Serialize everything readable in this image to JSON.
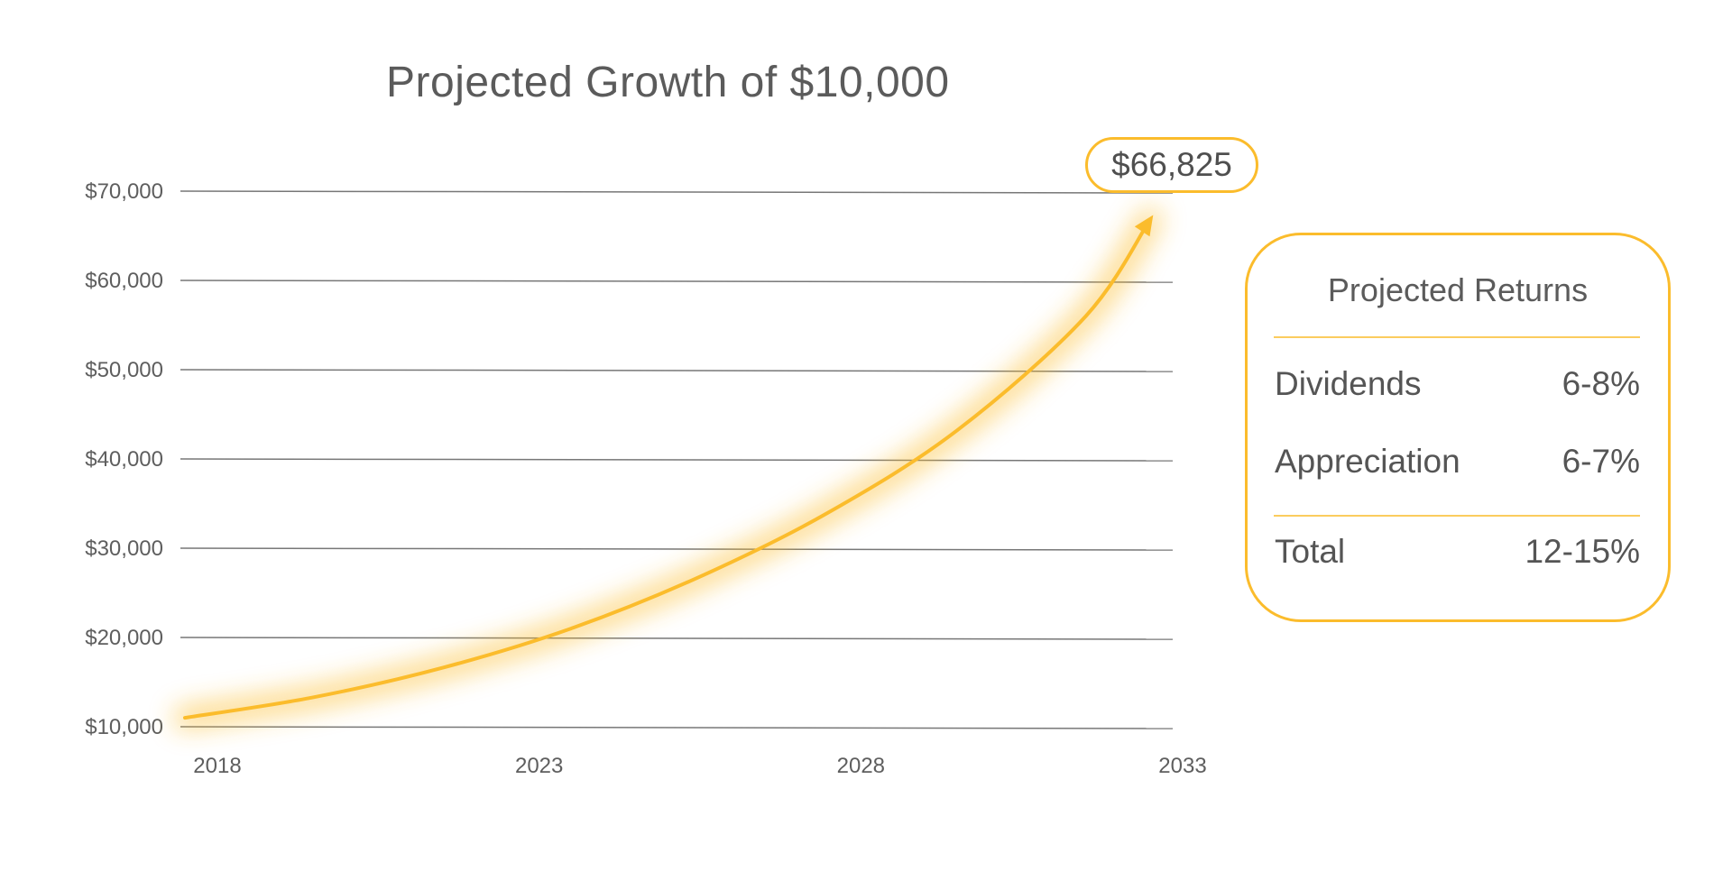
{
  "chart_data": {
    "type": "line",
    "title": "Projected Growth of $10,000",
    "x_ticks": [
      "2018",
      "2023",
      "2028",
      "2033"
    ],
    "y_ticks": [
      "$10,000",
      "$20,000",
      "$30,000",
      "$40,000",
      "$50,000",
      "$60,000",
      "$70,000"
    ],
    "xlim": [
      2018,
      2033
    ],
    "ylim": [
      10000,
      70000
    ],
    "grid": true,
    "series": [
      {
        "x": [
          2018,
          2020,
          2022,
          2024,
          2026,
          2028,
          2030,
          2032,
          2033
        ],
        "values": [
          11000,
          13300,
          16600,
          21000,
          26800,
          34000,
          43200,
          56000,
          66825
        ]
      }
    ],
    "final_value_label": "$66,825",
    "accent_color": "#fbbc2c"
  },
  "returns_panel": {
    "title": "Projected Returns",
    "rows": [
      {
        "label": "Dividends",
        "value": "6-8%"
      },
      {
        "label": "Appreciation",
        "value": "6-7%"
      }
    ],
    "total": {
      "label": "Total",
      "value": "12-15%"
    }
  }
}
